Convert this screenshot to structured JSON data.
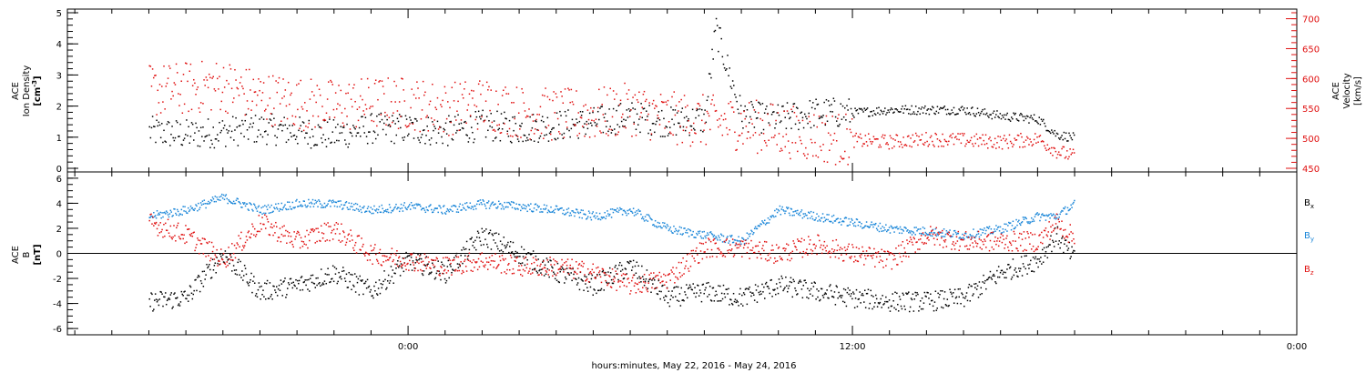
{
  "chart_data": [
    {
      "type": "scatter",
      "panel": "top",
      "xlabel": "hours:minutes, May 22, 2016 - May 24, 2016",
      "x_ticks": [
        "0:00",
        "12:00",
        "0:00"
      ],
      "left_axis": {
        "label_lines": [
          "ACE",
          "Ion Density"
        ],
        "unit_base": "[cm",
        "unit_sup": "-3",
        "unit_end": "]",
        "ylim": [
          0,
          5
        ],
        "tick_labels": [
          "0",
          "1",
          "2",
          "3",
          "4",
          "5"
        ]
      },
      "right_axis": {
        "label_lines": [
          "ACE",
          "Velocity",
          "[km/s]"
        ],
        "ylim": [
          450,
          710
        ],
        "tick_labels": [
          "450",
          "500",
          "550",
          "600",
          "650",
          "700"
        ],
        "color": "#e01010"
      },
      "series": [
        {
          "color": "#000000",
          "hours": [
            -7,
            -6,
            -5,
            -4,
            -3,
            -2,
            -1,
            0,
            1,
            2,
            3,
            4,
            5,
            6,
            7,
            8,
            8.3,
            9,
            10,
            11,
            12,
            13,
            14,
            15,
            16,
            17,
            17.5,
            18
          ],
          "values": [
            1.2,
            1.1,
            1.2,
            1.3,
            1.2,
            1.1,
            1.3,
            1.3,
            1.2,
            1.4,
            1.3,
            1.4,
            1.5,
            1.7,
            1.5,
            1.6,
            4.5,
            1.7,
            1.6,
            1.8,
            1.8,
            1.9,
            1.9,
            1.9,
            1.7,
            1.6,
            1.1,
            1.0
          ]
        },
        {
          "color": "#e01010",
          "hours": [
            -7,
            -6,
            -5,
            -4,
            -3,
            -2,
            -1,
            0,
            1,
            2,
            3,
            4,
            5,
            6,
            7,
            8,
            9,
            10,
            11,
            12,
            13,
            14,
            15,
            16,
            17,
            17.5,
            18
          ],
          "values": [
            580,
            585,
            590,
            570,
            560,
            555,
            560,
            560,
            550,
            560,
            545,
            540,
            540,
            550,
            535,
            530,
            525,
            515,
            505,
            498,
            495,
            500,
            498,
            495,
            500,
            480,
            470
          ]
        }
      ]
    },
    {
      "type": "scatter",
      "panel": "bottom",
      "xlabel": "hours:minutes, May 22, 2016 - May 24, 2016",
      "x_ticks": [
        "0:00",
        "12:00",
        "0:00"
      ],
      "left_axis": {
        "label_lines": [
          "ACE",
          "B"
        ],
        "unit": "[nT]",
        "ylim": [
          -6.5,
          6.5
        ],
        "tick_labels": [
          "-6",
          "-4",
          "-2",
          "0",
          "2",
          "4",
          "6"
        ]
      },
      "zero_line": true,
      "series": [
        {
          "legend_base": "B",
          "legend_sub": "x",
          "color": "#000000",
          "hours": [
            -7,
            -6,
            -5,
            -4,
            -3,
            -2,
            -1,
            0,
            1,
            2,
            3,
            4,
            5,
            6,
            7,
            8,
            9,
            10,
            11,
            12,
            13,
            14,
            15,
            16,
            17,
            17.5,
            18
          ],
          "values": [
            -3.8,
            -3.5,
            0,
            -3.0,
            -2.5,
            -1.5,
            -3.0,
            -0.5,
            -1.5,
            1.5,
            0,
            -1.5,
            -2.5,
            -1,
            -3.5,
            -3.0,
            -3.5,
            -2.5,
            -3.0,
            -3.5,
            -3.8,
            -3.8,
            -3.5,
            -1.5,
            -0.5,
            1.5,
            -0.5
          ]
        },
        {
          "legend_base": "B",
          "legend_sub": "y",
          "color": "#1a86d8",
          "hours": [
            -7,
            -6,
            -5,
            -4,
            -3,
            -2,
            -1,
            0,
            1,
            2,
            3,
            4,
            5,
            6,
            7,
            8,
            9,
            10,
            11,
            12,
            13,
            14,
            15,
            16,
            17,
            17.5,
            18
          ],
          "values": [
            3.0,
            3.5,
            4.5,
            3.5,
            4.0,
            4.0,
            3.5,
            3.8,
            3.5,
            4.0,
            3.8,
            3.5,
            3.0,
            3.5,
            2.0,
            1.5,
            1.0,
            3.5,
            3.0,
            2.5,
            2.0,
            1.8,
            1.5,
            2.0,
            3.0,
            3.0,
            4.0
          ]
        },
        {
          "legend_base": "B",
          "legend_sub": "z",
          "color": "#e01010",
          "hours": [
            -7,
            -6,
            -5,
            -4,
            -3,
            -2,
            -1,
            0,
            1,
            2,
            3,
            4,
            5,
            6,
            7,
            8,
            9,
            10,
            11,
            12,
            13,
            14,
            15,
            16,
            17,
            17.5,
            18
          ],
          "values": [
            2.5,
            1.5,
            -0.5,
            2.5,
            1.0,
            2.0,
            0,
            -0.5,
            -1.0,
            -0.5,
            -1.0,
            -1.0,
            -1.5,
            -2.5,
            -2.0,
            0.5,
            0.5,
            0,
            0.8,
            0,
            -0.5,
            1.5,
            1.0,
            1.0,
            1.0,
            2.5,
            1.2
          ]
        }
      ]
    }
  ]
}
